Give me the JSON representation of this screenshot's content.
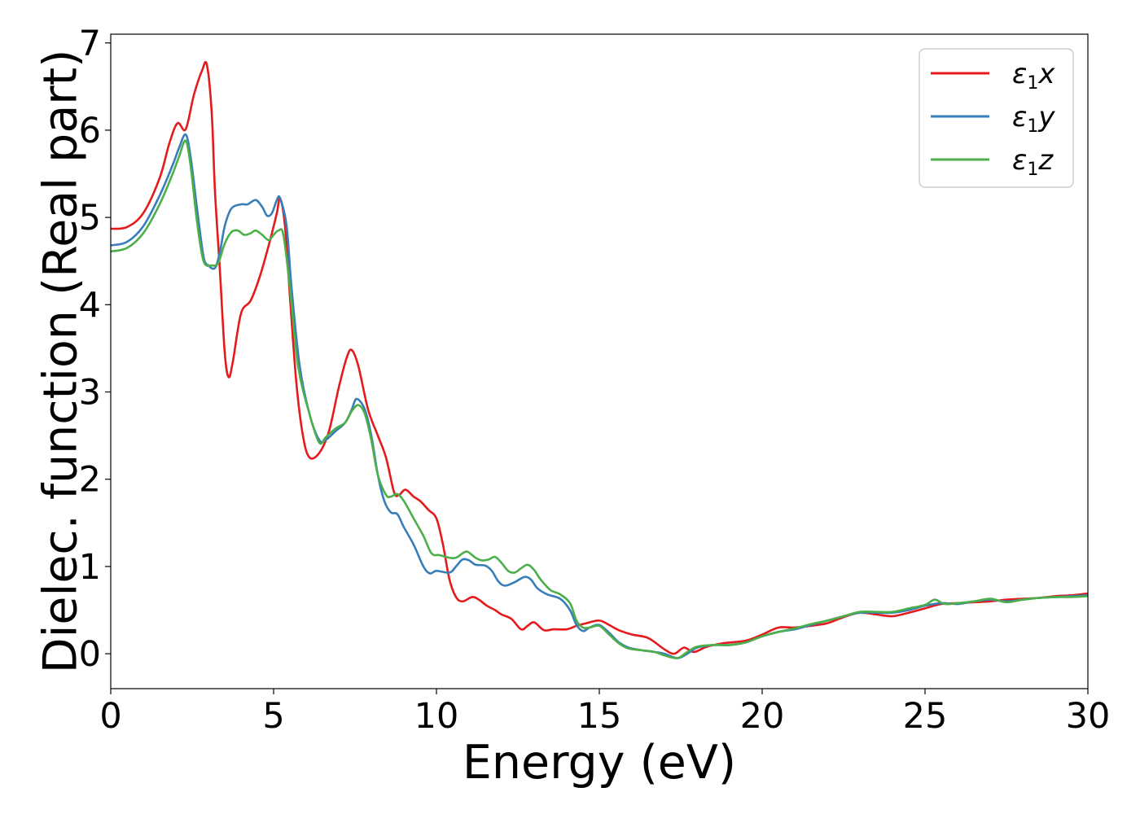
{
  "chart_data": {
    "type": "line",
    "title": "",
    "xlabel": "Energy (eV)",
    "ylabel": "Dielec. function (Real part)",
    "xlim": [
      0,
      30
    ],
    "ylim": [
      -0.4,
      7.1
    ],
    "xticks": [
      0,
      5,
      10,
      15,
      20,
      25,
      30
    ],
    "yticks": [
      0,
      1,
      2,
      3,
      4,
      5,
      6,
      7
    ],
    "grid": false,
    "legend_position": "top-right",
    "series": [
      {
        "name": "ε1x",
        "legend_base": "ε",
        "legend_sub": "1",
        "legend_axis": "x",
        "color": "#e41a1c",
        "points": [
          [
            0,
            4.87
          ],
          [
            0.5,
            4.89
          ],
          [
            1.0,
            5.05
          ],
          [
            1.5,
            5.45
          ],
          [
            1.8,
            5.85
          ],
          [
            2.05,
            6.08
          ],
          [
            2.3,
            6.01
          ],
          [
            2.55,
            6.4
          ],
          [
            2.8,
            6.68
          ],
          [
            2.95,
            6.75
          ],
          [
            3.1,
            6.2
          ],
          [
            3.2,
            5.3
          ],
          [
            3.35,
            4.4
          ],
          [
            3.5,
            3.45
          ],
          [
            3.62,
            3.17
          ],
          [
            3.75,
            3.35
          ],
          [
            4.0,
            3.9
          ],
          [
            4.3,
            4.05
          ],
          [
            4.6,
            4.35
          ],
          [
            4.9,
            4.75
          ],
          [
            5.1,
            5.05
          ],
          [
            5.2,
            5.22
          ],
          [
            5.35,
            4.9
          ],
          [
            5.5,
            4.1
          ],
          [
            5.7,
            3.1
          ],
          [
            5.9,
            2.5
          ],
          [
            6.1,
            2.25
          ],
          [
            6.4,
            2.3
          ],
          [
            6.7,
            2.55
          ],
          [
            7.0,
            3.05
          ],
          [
            7.25,
            3.4
          ],
          [
            7.4,
            3.48
          ],
          [
            7.6,
            3.3
          ],
          [
            7.9,
            2.8
          ],
          [
            8.2,
            2.5
          ],
          [
            8.45,
            2.25
          ],
          [
            8.7,
            1.85
          ],
          [
            8.85,
            1.82
          ],
          [
            9.05,
            1.88
          ],
          [
            9.3,
            1.8
          ],
          [
            9.5,
            1.75
          ],
          [
            9.75,
            1.65
          ],
          [
            10.0,
            1.55
          ],
          [
            10.2,
            1.25
          ],
          [
            10.4,
            0.85
          ],
          [
            10.6,
            0.65
          ],
          [
            10.8,
            0.6
          ],
          [
            11.1,
            0.65
          ],
          [
            11.3,
            0.62
          ],
          [
            11.55,
            0.55
          ],
          [
            11.8,
            0.5
          ],
          [
            12.0,
            0.45
          ],
          [
            12.3,
            0.4
          ],
          [
            12.6,
            0.28
          ],
          [
            12.8,
            0.32
          ],
          [
            13.0,
            0.36
          ],
          [
            13.3,
            0.27
          ],
          [
            13.6,
            0.28
          ],
          [
            14.0,
            0.28
          ],
          [
            14.3,
            0.32
          ],
          [
            14.6,
            0.35
          ],
          [
            15.0,
            0.38
          ],
          [
            15.3,
            0.33
          ],
          [
            15.6,
            0.27
          ],
          [
            16.0,
            0.22
          ],
          [
            16.5,
            0.18
          ],
          [
            17.0,
            0.05
          ],
          [
            17.3,
            0.0
          ],
          [
            17.6,
            0.07
          ],
          [
            17.9,
            0.02
          ],
          [
            18.3,
            0.08
          ],
          [
            18.8,
            0.12
          ],
          [
            19.5,
            0.15
          ],
          [
            20.0,
            0.22
          ],
          [
            20.5,
            0.3
          ],
          [
            21.0,
            0.3
          ],
          [
            21.5,
            0.32
          ],
          [
            22.0,
            0.35
          ],
          [
            22.5,
            0.42
          ],
          [
            23.0,
            0.47
          ],
          [
            23.5,
            0.45
          ],
          [
            24.0,
            0.43
          ],
          [
            24.5,
            0.47
          ],
          [
            25.0,
            0.52
          ],
          [
            25.5,
            0.57
          ],
          [
            26.0,
            0.58
          ],
          [
            26.5,
            0.59
          ],
          [
            27.0,
            0.6
          ],
          [
            27.5,
            0.62
          ],
          [
            28.0,
            0.63
          ],
          [
            28.5,
            0.64
          ],
          [
            29.0,
            0.66
          ],
          [
            29.5,
            0.67
          ],
          [
            30.0,
            0.69
          ]
        ]
      },
      {
        "name": "ε1y",
        "legend_base": "ε",
        "legend_sub": "1",
        "legend_axis": "y",
        "color": "#377eb8",
        "points": [
          [
            0,
            4.68
          ],
          [
            0.5,
            4.72
          ],
          [
            1.0,
            4.9
          ],
          [
            1.5,
            5.25
          ],
          [
            1.9,
            5.6
          ],
          [
            2.1,
            5.8
          ],
          [
            2.3,
            5.95
          ],
          [
            2.45,
            5.7
          ],
          [
            2.65,
            5.1
          ],
          [
            2.85,
            4.55
          ],
          [
            3.0,
            4.45
          ],
          [
            3.2,
            4.42
          ],
          [
            3.35,
            4.6
          ],
          [
            3.5,
            4.9
          ],
          [
            3.7,
            5.1
          ],
          [
            4.0,
            5.15
          ],
          [
            4.2,
            5.15
          ],
          [
            4.45,
            5.2
          ],
          [
            4.65,
            5.12
          ],
          [
            4.8,
            5.02
          ],
          [
            4.95,
            5.05
          ],
          [
            5.1,
            5.2
          ],
          [
            5.2,
            5.22
          ],
          [
            5.4,
            4.9
          ],
          [
            5.55,
            4.2
          ],
          [
            5.8,
            3.3
          ],
          [
            6.1,
            2.75
          ],
          [
            6.4,
            2.45
          ],
          [
            6.6,
            2.45
          ],
          [
            6.9,
            2.55
          ],
          [
            7.2,
            2.65
          ],
          [
            7.4,
            2.8
          ],
          [
            7.55,
            2.92
          ],
          [
            7.8,
            2.8
          ],
          [
            8.0,
            2.5
          ],
          [
            8.2,
            2.05
          ],
          [
            8.4,
            1.75
          ],
          [
            8.6,
            1.62
          ],
          [
            8.8,
            1.6
          ],
          [
            9.0,
            1.45
          ],
          [
            9.3,
            1.25
          ],
          [
            9.6,
            1.0
          ],
          [
            9.8,
            0.92
          ],
          [
            10.0,
            0.95
          ],
          [
            10.4,
            0.93
          ],
          [
            10.6,
            1.0
          ],
          [
            10.8,
            1.08
          ],
          [
            11.0,
            1.07
          ],
          [
            11.2,
            1.02
          ],
          [
            11.5,
            1.01
          ],
          [
            11.7,
            0.95
          ],
          [
            11.9,
            0.83
          ],
          [
            12.1,
            0.78
          ],
          [
            12.4,
            0.82
          ],
          [
            12.7,
            0.88
          ],
          [
            12.9,
            0.85
          ],
          [
            13.1,
            0.75
          ],
          [
            13.4,
            0.68
          ],
          [
            13.8,
            0.63
          ],
          [
            14.1,
            0.5
          ],
          [
            14.3,
            0.33
          ],
          [
            14.5,
            0.26
          ],
          [
            14.7,
            0.3
          ],
          [
            15.0,
            0.33
          ],
          [
            15.3,
            0.24
          ],
          [
            15.6,
            0.13
          ],
          [
            15.9,
            0.07
          ],
          [
            16.3,
            0.04
          ],
          [
            16.7,
            0.02
          ],
          [
            17.0,
            0.0
          ],
          [
            17.4,
            -0.05
          ],
          [
            17.7,
            0.0
          ],
          [
            18.0,
            0.07
          ],
          [
            18.5,
            0.1
          ],
          [
            19.0,
            0.1
          ],
          [
            19.5,
            0.13
          ],
          [
            20.0,
            0.2
          ],
          [
            20.5,
            0.25
          ],
          [
            21.0,
            0.28
          ],
          [
            21.5,
            0.33
          ],
          [
            22.0,
            0.38
          ],
          [
            22.5,
            0.43
          ],
          [
            23.0,
            0.47
          ],
          [
            23.5,
            0.47
          ],
          [
            24.0,
            0.47
          ],
          [
            24.5,
            0.5
          ],
          [
            25.0,
            0.55
          ],
          [
            25.5,
            0.58
          ],
          [
            26.0,
            0.57
          ],
          [
            26.5,
            0.6
          ],
          [
            27.0,
            0.62
          ],
          [
            27.5,
            0.6
          ],
          [
            28.0,
            0.62
          ],
          [
            28.5,
            0.64
          ],
          [
            29.0,
            0.65
          ],
          [
            29.5,
            0.66
          ],
          [
            30.0,
            0.67
          ]
        ]
      },
      {
        "name": "ε1z",
        "legend_base": "ε",
        "legend_sub": "1",
        "legend_axis": "z",
        "color": "#4daf4a",
        "points": [
          [
            0,
            4.61
          ],
          [
            0.5,
            4.65
          ],
          [
            1.0,
            4.82
          ],
          [
            1.5,
            5.15
          ],
          [
            1.9,
            5.5
          ],
          [
            2.1,
            5.7
          ],
          [
            2.3,
            5.88
          ],
          [
            2.45,
            5.6
          ],
          [
            2.65,
            4.95
          ],
          [
            2.85,
            4.5
          ],
          [
            3.1,
            4.45
          ],
          [
            3.3,
            4.48
          ],
          [
            3.5,
            4.7
          ],
          [
            3.7,
            4.83
          ],
          [
            3.9,
            4.85
          ],
          [
            4.1,
            4.8
          ],
          [
            4.3,
            4.82
          ],
          [
            4.45,
            4.85
          ],
          [
            4.65,
            4.8
          ],
          [
            4.85,
            4.74
          ],
          [
            5.0,
            4.8
          ],
          [
            5.15,
            4.85
          ],
          [
            5.3,
            4.8
          ],
          [
            5.5,
            4.2
          ],
          [
            5.75,
            3.3
          ],
          [
            6.1,
            2.75
          ],
          [
            6.4,
            2.42
          ],
          [
            6.6,
            2.48
          ],
          [
            6.9,
            2.58
          ],
          [
            7.2,
            2.65
          ],
          [
            7.4,
            2.78
          ],
          [
            7.6,
            2.85
          ],
          [
            7.8,
            2.75
          ],
          [
            8.0,
            2.45
          ],
          [
            8.2,
            2.05
          ],
          [
            8.45,
            1.82
          ],
          [
            8.6,
            1.8
          ],
          [
            8.8,
            1.83
          ],
          [
            9.0,
            1.75
          ],
          [
            9.3,
            1.55
          ],
          [
            9.6,
            1.35
          ],
          [
            9.85,
            1.15
          ],
          [
            10.1,
            1.13
          ],
          [
            10.4,
            1.1
          ],
          [
            10.6,
            1.1
          ],
          [
            10.8,
            1.15
          ],
          [
            10.95,
            1.17
          ],
          [
            11.2,
            1.1
          ],
          [
            11.4,
            1.07
          ],
          [
            11.6,
            1.08
          ],
          [
            11.8,
            1.11
          ],
          [
            12.0,
            1.04
          ],
          [
            12.2,
            0.95
          ],
          [
            12.4,
            0.93
          ],
          [
            12.6,
            0.98
          ],
          [
            12.8,
            1.02
          ],
          [
            13.0,
            0.96
          ],
          [
            13.2,
            0.85
          ],
          [
            13.5,
            0.73
          ],
          [
            13.8,
            0.68
          ],
          [
            14.1,
            0.58
          ],
          [
            14.3,
            0.38
          ],
          [
            14.5,
            0.3
          ],
          [
            14.7,
            0.3
          ],
          [
            15.0,
            0.32
          ],
          [
            15.3,
            0.22
          ],
          [
            15.6,
            0.12
          ],
          [
            15.9,
            0.06
          ],
          [
            16.3,
            0.04
          ],
          [
            16.7,
            0.02
          ],
          [
            17.0,
            -0.02
          ],
          [
            17.4,
            -0.05
          ],
          [
            17.7,
            0.02
          ],
          [
            18.0,
            0.08
          ],
          [
            18.5,
            0.1
          ],
          [
            19.0,
            0.1
          ],
          [
            19.5,
            0.13
          ],
          [
            20.0,
            0.2
          ],
          [
            20.5,
            0.25
          ],
          [
            21.0,
            0.29
          ],
          [
            21.5,
            0.34
          ],
          [
            22.0,
            0.38
          ],
          [
            22.5,
            0.43
          ],
          [
            23.0,
            0.48
          ],
          [
            23.5,
            0.48
          ],
          [
            24.0,
            0.48
          ],
          [
            24.5,
            0.52
          ],
          [
            25.0,
            0.56
          ],
          [
            25.3,
            0.62
          ],
          [
            25.6,
            0.57
          ],
          [
            26.0,
            0.58
          ],
          [
            26.5,
            0.6
          ],
          [
            27.0,
            0.63
          ],
          [
            27.5,
            0.59
          ],
          [
            28.0,
            0.62
          ],
          [
            28.5,
            0.64
          ],
          [
            29.0,
            0.65
          ],
          [
            29.5,
            0.65
          ],
          [
            30.0,
            0.66
          ]
        ]
      }
    ]
  }
}
